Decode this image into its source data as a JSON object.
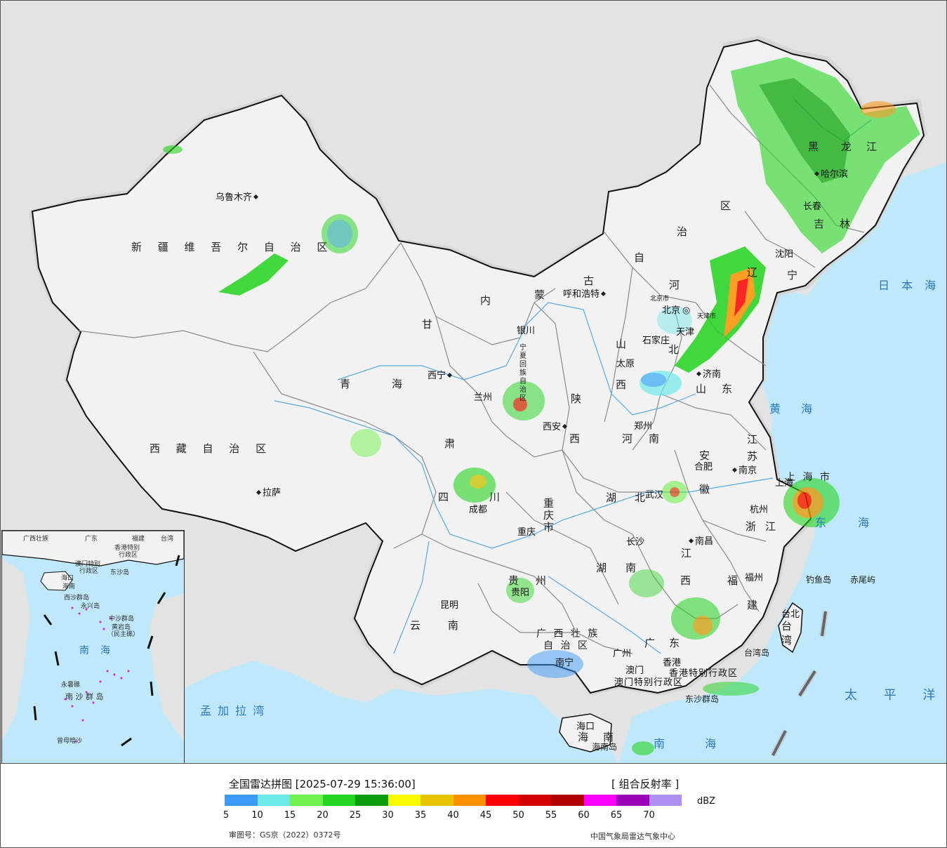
{
  "map": {
    "colors": {
      "land": "#f2f2f2",
      "foreign": "#e3e3e3",
      "sea": "#bfe9fa",
      "border": "#111111",
      "province_border": "#888888",
      "river": "#5aa8e0"
    },
    "provinces": [
      "新 疆 维 吾 尔 自 治 区",
      "西 藏 自 治 区",
      "青",
      "海",
      "甘",
      "肃",
      "内",
      "蒙",
      "古",
      "自",
      "治",
      "区",
      "黑",
      "龙",
      "江",
      "吉",
      "林",
      "辽",
      "宁",
      "河",
      "北",
      "山",
      "西",
      "山",
      "东",
      "陕",
      "西",
      "河",
      "南",
      "四",
      "川",
      "重 庆 市",
      "湖",
      "北",
      "湖",
      "南",
      "安",
      "徽",
      "江",
      "苏",
      "浙",
      "江",
      "江",
      "西",
      "福",
      "建",
      "贵",
      "州",
      "云",
      "南",
      "广 西 壮 族",
      "自 治 区",
      "广",
      "东",
      "海",
      "南",
      "宁 夏 回 族 自 治 区",
      "上 海 市",
      "台",
      "湾"
    ],
    "cities": [
      "乌鲁木齐",
      "拉萨",
      "西宁",
      "兰州",
      "银川",
      "呼和浩特",
      "北京市",
      "北京",
      "天津市",
      "天津",
      "石家庄",
      "太原",
      "济南",
      "郑州",
      "西安",
      "成都",
      "重庆",
      "武汉",
      "合肥",
      "南京",
      "上海",
      "杭州",
      "南昌",
      "长沙",
      "福州",
      "贵阳",
      "昆明",
      "南宁",
      "广州",
      "香港",
      "澳门",
      "海口",
      "台北",
      "沈阳",
      "长春",
      "哈尔滨"
    ],
    "special": [
      "香港特别行政区",
      "澳门特别行政区",
      "东沙群岛",
      "海南岛",
      "台湾岛",
      "钓鱼岛",
      "赤尾屿"
    ],
    "seas": [
      "日 本 海",
      "黄 海",
      "东 海",
      "南 海",
      "太 平 洋",
      "孟 加 拉 湾"
    ],
    "inset": {
      "labels": [
        "广西壮族",
        "广东",
        "福建",
        "台湾",
        "香港特别",
        "行政区",
        "澳门特别",
        "行政区",
        "东沙岛",
        "海口",
        "海南",
        "西沙群岛",
        "永兴岛",
        "中沙群岛",
        "黄岩岛",
        "（民主礁）",
        "南",
        "海",
        "永暑礁",
        "南 沙 群 岛",
        "曾母暗沙"
      ]
    }
  },
  "legend": {
    "title": "全国雷达拼图 [2025-07-29 15:36:00]",
    "product": "[ 组合反射率 ]",
    "unit": "dBZ",
    "ticks": [
      "5",
      "10",
      "15",
      "20",
      "25",
      "30",
      "35",
      "40",
      "45",
      "50",
      "55",
      "60",
      "65",
      "70"
    ],
    "colors": [
      "#3d9bf5",
      "#6be8e8",
      "#6ff04a",
      "#22d41e",
      "#0b9c0b",
      "#fafa00",
      "#e6c200",
      "#fd9000",
      "#fd0000",
      "#d30000",
      "#b00000",
      "#fd00fd",
      "#9900b8",
      "#ad90f0"
    ],
    "approval": "审图号：GS京（2022）0372号",
    "source": "中国气象局雷达气象中心"
  }
}
